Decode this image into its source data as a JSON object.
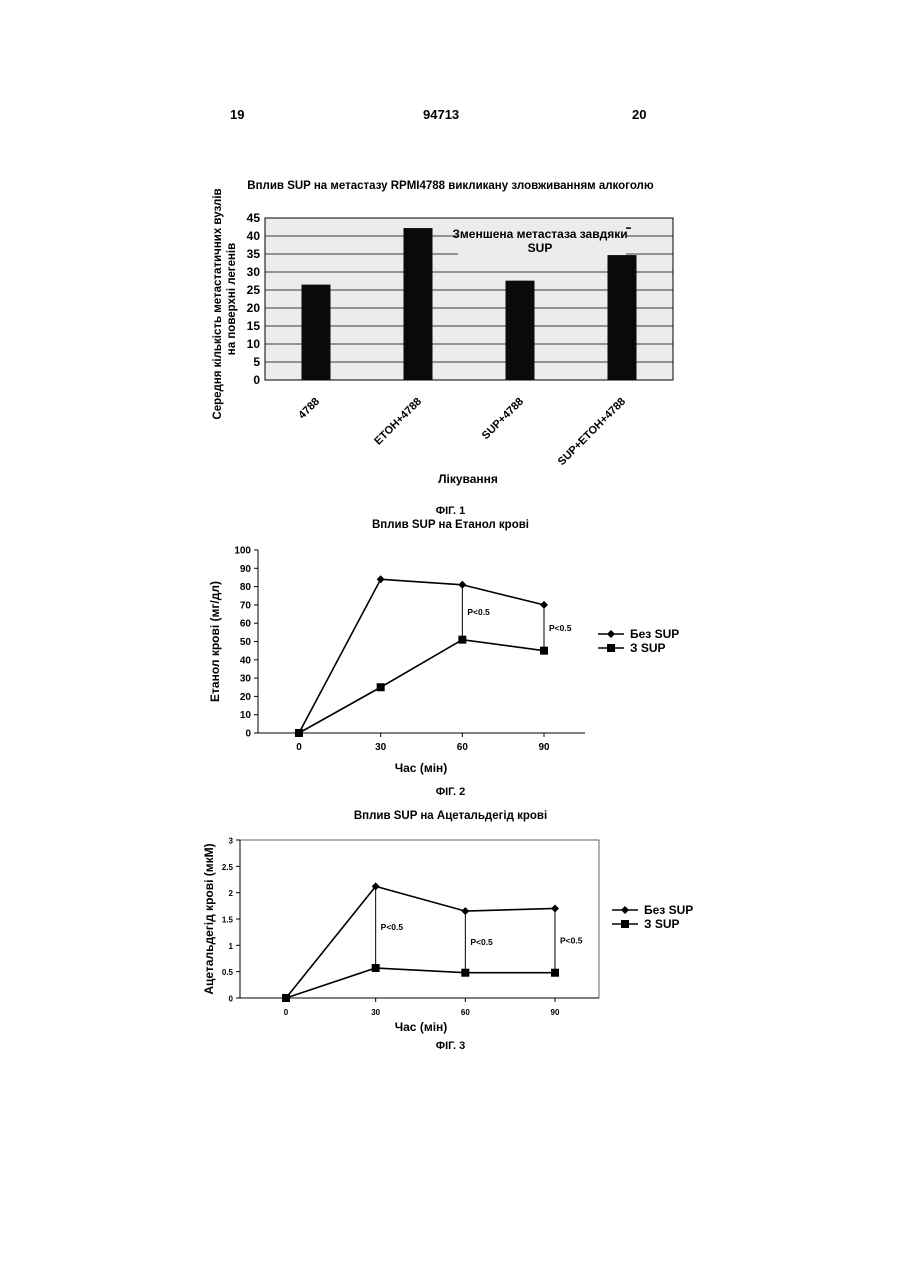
{
  "header": {
    "left_page": "19",
    "doc_number": "94713",
    "right_page": "20"
  },
  "figures": [
    {
      "caption": "ФІГ. 1"
    },
    {
      "caption": "ФІГ. 2"
    },
    {
      "caption": "ФІГ. 3"
    }
  ],
  "chart_data": [
    {
      "type": "bar",
      "title": "Вплив SUP на метастазу RPMI4788 викликану зловживанням алкоголю",
      "xlabel": "Лікування",
      "ylabel_line1": "Середня кількість метастатичних вузлів",
      "ylabel_line2": "на поверхні легенів",
      "categories": [
        "4788",
        "ETOH+4788",
        "SUP+4788",
        "SUP+ETOH+4788"
      ],
      "values": [
        26.5,
        42.2,
        27.6,
        34.7
      ],
      "error": [
        null,
        null,
        null,
        7.5
      ],
      "ylim": [
        0,
        45
      ],
      "yticks": [
        "0",
        "5",
        "10",
        "15",
        "20",
        "25",
        "30",
        "35",
        "40",
        "45"
      ],
      "annotation_line1": "Зменшена метастаза завдяки",
      "annotation_line2": "SUP",
      "grid": true
    },
    {
      "type": "line",
      "title": "Вплив SUP на Етанол крові",
      "xlabel": "Час (мін)",
      "ylabel": "Етанол крові (мг/дл)",
      "x": [
        0,
        30,
        60,
        90
      ],
      "xticks": [
        "0",
        "30",
        "60",
        "90"
      ],
      "ylim": [
        0,
        100
      ],
      "yticks": [
        "0",
        "10",
        "20",
        "30",
        "40",
        "50",
        "60",
        "70",
        "80",
        "90",
        "100"
      ],
      "series": [
        {
          "name": "Без SUP",
          "marker": "diamond",
          "values": [
            0,
            84,
            81,
            70
          ]
        },
        {
          "name": "З SUP",
          "marker": "square",
          "values": [
            0,
            25,
            51,
            45
          ]
        }
      ],
      "pvalues": [
        {
          "x": 60,
          "label": "P<0.5"
        },
        {
          "x": 90,
          "label": "P<0.5"
        }
      ],
      "legend": "right"
    },
    {
      "type": "line",
      "title": "Вплив SUP на Ацетальдегід крові",
      "xlabel": "Час (мін)",
      "ylabel": "Ацетальдегід крові (мкМ)",
      "x": [
        0,
        30,
        60,
        90
      ],
      "xticks": [
        "0",
        "30",
        "60",
        "90"
      ],
      "ylim": [
        0,
        3
      ],
      "yticks": [
        "0",
        "0.5",
        "1",
        "1.5",
        "2",
        "2.5",
        "3"
      ],
      "series": [
        {
          "name": "Без SUP",
          "marker": "diamond",
          "values": [
            0,
            2.12,
            1.65,
            1.7
          ]
        },
        {
          "name": "З SUP",
          "marker": "square",
          "values": [
            0,
            0.57,
            0.48,
            0.48
          ]
        }
      ],
      "pvalues": [
        {
          "x": 30,
          "label": "P<0.5"
        },
        {
          "x": 60,
          "label": "P<0.5"
        },
        {
          "x": 90,
          "label": "P<0.5"
        }
      ],
      "legend": "right"
    }
  ]
}
